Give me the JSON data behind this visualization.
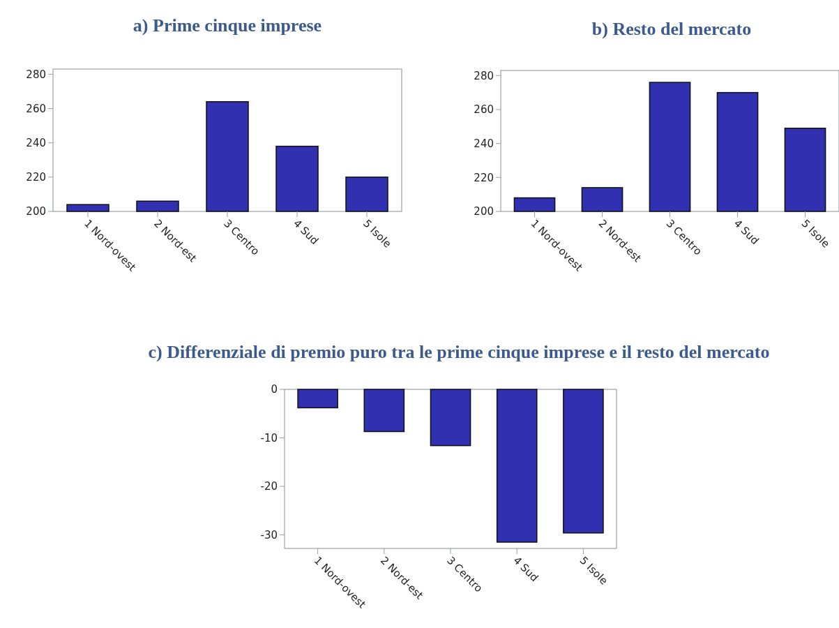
{
  "chart_data": [
    {
      "type": "bar",
      "title": "a)  Prime cinque imprese",
      "categories": [
        "1 Nord-ovest",
        "2 Nord-est",
        "3 Centro",
        "4 Sud",
        "5 Isole"
      ],
      "values": [
        204,
        206,
        264,
        238,
        220
      ],
      "color": "#3030b0",
      "ylim": [
        200,
        283
      ],
      "yticks": [
        200,
        220,
        240,
        260,
        280
      ]
    },
    {
      "type": "bar",
      "title": "b)  Resto del mercato",
      "categories": [
        "1 Nord-ovest",
        "2 Nord-est",
        "3 Centro",
        "4 Sud",
        "5 Isole"
      ],
      "values": [
        208,
        214,
        276,
        270,
        249
      ],
      "color": "#3030b0",
      "ylim": [
        200,
        283
      ],
      "yticks": [
        200,
        220,
        240,
        260,
        280
      ]
    },
    {
      "type": "bar",
      "title": "c)  Differenziale di premio puro tra le prime cinque imprese e il resto del mercato",
      "categories": [
        "1 Nord-ovest",
        "2 Nord-est",
        "3 Centro",
        "4 Sud",
        "5 Isole"
      ],
      "values": [
        -3.8,
        -8.7,
        -11.6,
        -31.5,
        -29.6
      ],
      "color": "#3030b0",
      "ylim": [
        -32.8,
        0
      ],
      "yticks": [
        -30,
        -20,
        -10,
        0
      ]
    }
  ]
}
